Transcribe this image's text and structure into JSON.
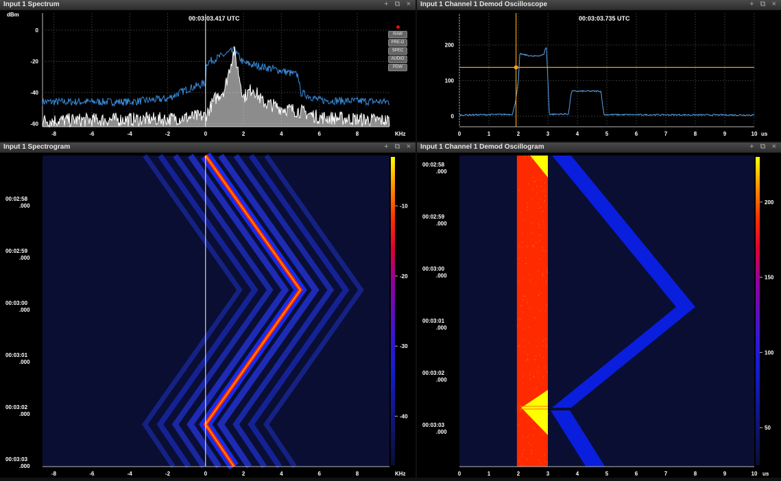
{
  "panels": {
    "spectrum": {
      "title": "Input 1 Spectrum",
      "timestamp": "00:03:03.417 UTC",
      "unit": "dBm",
      "x_unit": "KHz",
      "buttons": [
        "RAW",
        "PRE-D",
        "SPEC",
        "AUDIO",
        "PDW"
      ]
    },
    "scope": {
      "title": "Input 1 Channel 1 Demod Oscilloscope",
      "timestamp": "00:03:03.735 UTC",
      "x_unit": "us"
    },
    "spectrogram": {
      "title": "Input 1 Spectrogram",
      "x_unit": "KHz"
    },
    "oscillogram": {
      "title": "Input 1 Channel 1 Demod Oscillogram",
      "x_unit": "us"
    }
  },
  "window_controls": {
    "add": "+",
    "float": "⧉",
    "close": "×"
  },
  "icons": {
    "add": "plus-icon",
    "float": "float-window-icon",
    "close": "close-icon"
  },
  "colors": {
    "trace_blue": "#3a8fe0",
    "cursor": "#f0a020",
    "bg": "#000000"
  },
  "chart_data": [
    {
      "type": "line",
      "title": "Input 1 Spectrum",
      "xlabel": "KHz",
      "ylabel": "dBm",
      "xlim": [
        -8.6,
        9.7
      ],
      "ylim": [
        -62,
        11
      ],
      "x_ticks": [
        -8,
        -6,
        -4,
        -2,
        0,
        2,
        4,
        6,
        8
      ],
      "y_ticks": [
        0,
        -20,
        -40,
        -60
      ],
      "series": [
        {
          "x": [
            -8.6,
            -4,
            -2,
            -1,
            0,
            0.05,
            1.5,
            2,
            4,
            4.9,
            5,
            6,
            9.7
          ],
          "values": [
            -46,
            -46,
            -44,
            -38,
            -34,
            -21,
            -13,
            -21,
            -26,
            -29,
            -40,
            -45,
            -46
          ]
        },
        {
          "x": [
            -8.6,
            -2,
            0,
            0.5,
            1.0,
            1.5,
            2.0,
            2.5,
            3.0,
            4,
            5,
            6,
            9.7
          ],
          "values": [
            -58,
            -57,
            -55,
            -44,
            -38,
            -13,
            -43,
            -37,
            -46,
            -50,
            -52,
            -56,
            -58
          ]
        }
      ]
    },
    {
      "type": "line",
      "title": "Input 1 Channel 1 Demod Oscilloscope",
      "xlabel": "us",
      "xlim": [
        0,
        10
      ],
      "ylim": [
        -30,
        290
      ],
      "x_ticks": [
        0,
        1,
        2,
        3,
        4,
        5,
        6,
        7,
        8,
        9,
        10
      ],
      "y_ticks": [
        0,
        100,
        200
      ],
      "cursor": {
        "x": 1.92,
        "y": 137
      },
      "series": [
        {
          "x": [
            0,
            1.8,
            1.9,
            2.0,
            2.05,
            2.5,
            2.85,
            2.95,
            3.0,
            3.05,
            3.7,
            3.8,
            4.8,
            4.9,
            10
          ],
          "values": [
            3,
            5,
            40,
            100,
            175,
            168,
            172,
            198,
            100,
            5,
            6,
            70,
            70,
            4,
            3
          ]
        }
      ]
    },
    {
      "type": "heatmap",
      "title": "Input 1 Spectrogram",
      "xlabel": "KHz",
      "xlim": [
        -8.6,
        9.7
      ],
      "x_ticks": [
        -8,
        -6,
        -4,
        -2,
        0,
        2,
        4,
        6,
        8
      ],
      "y_ticks": [
        "00:02:58",
        "00:02:59",
        "00:03:00",
        "00:03:01",
        "00:03:02",
        "00:03:03"
      ],
      "y_sub": ".000",
      "colorbar_ticks": [
        -10,
        -20,
        -30,
        -40
      ],
      "sweep": {
        "times": [
          57.6,
          61.1,
          64.6,
          65.7
        ],
        "khz": [
          0,
          5,
          0,
          1.5
        ]
      }
    },
    {
      "type": "heatmap",
      "title": "Input 1 Channel 1 Demod Oscillogram",
      "xlabel": "us",
      "xlim": [
        0,
        10
      ],
      "x_ticks": [
        0,
        1,
        2,
        3,
        4,
        5,
        6,
        7,
        8,
        9,
        10
      ],
      "y_ticks": [
        "00:02:58",
        "00:02:59",
        "00:03:00",
        "00:03:01",
        "00:03:02",
        "00:03:03"
      ],
      "y_sub": ".000",
      "colorbar_ticks": [
        200,
        150,
        100,
        50
      ]
    }
  ]
}
